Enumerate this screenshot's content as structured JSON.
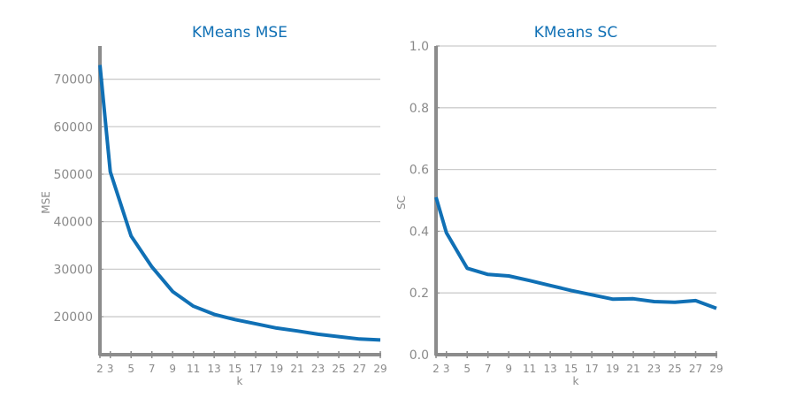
{
  "colors": {
    "line": "#1070b5",
    "title": "#1070b5",
    "grid": "#cccccc",
    "axis": "#8c8c8c",
    "text": "#8a8a8a"
  },
  "chart_data": [
    {
      "type": "line",
      "title": "KMeans MSE",
      "xlabel": "k",
      "ylabel": "MSE",
      "grid": "horizontal",
      "xlim": [
        2,
        29
      ],
      "ylim": [
        12000,
        77000
      ],
      "x_ticks": [
        2,
        3,
        5,
        7,
        9,
        11,
        13,
        15,
        17,
        19,
        21,
        23,
        25,
        27,
        29
      ],
      "y_ticks": [
        20000,
        30000,
        40000,
        50000,
        60000,
        70000
      ],
      "x_tick_labels": [
        "2",
        "3",
        "5",
        "7",
        "9",
        "11",
        "13",
        "15",
        "17",
        "19",
        "21",
        "23",
        "25",
        "27",
        "29"
      ],
      "y_tick_labels": [
        "20000",
        "30000",
        "40000",
        "50000",
        "60000",
        "70000"
      ],
      "series": [
        {
          "x": [
            2,
            3,
            5,
            7,
            9,
            11,
            13,
            15,
            17,
            19,
            21,
            23,
            25,
            27,
            29
          ],
          "y": [
            73000,
            50500,
            37000,
            30500,
            25300,
            22200,
            20500,
            19400,
            18500,
            17600,
            17000,
            16300,
            15800,
            15300,
            15100
          ]
        }
      ]
    },
    {
      "type": "line",
      "title": "KMeans SC",
      "xlabel": "k",
      "ylabel": "SC",
      "grid": "horizontal",
      "xlim": [
        2,
        29
      ],
      "ylim": [
        0.0,
        1.0
      ],
      "x_ticks": [
        2,
        3,
        5,
        7,
        9,
        11,
        13,
        15,
        17,
        19,
        21,
        23,
        25,
        27,
        29
      ],
      "y_ticks": [
        0.0,
        0.2,
        0.4,
        0.6,
        0.8,
        1.0
      ],
      "x_tick_labels": [
        "2",
        "3",
        "5",
        "7",
        "9",
        "11",
        "13",
        "15",
        "17",
        "19",
        "21",
        "23",
        "25",
        "27",
        "29"
      ],
      "y_tick_labels": [
        "0.0",
        "0.2",
        "0.4",
        "0.6",
        "0.8",
        "1.0"
      ],
      "series": [
        {
          "x": [
            2,
            3,
            5,
            7,
            9,
            11,
            13,
            15,
            17,
            19,
            21,
            23,
            25,
            27,
            29
          ],
          "y": [
            0.51,
            0.395,
            0.28,
            0.26,
            0.255,
            0.24,
            0.224,
            0.208,
            0.194,
            0.18,
            0.181,
            0.172,
            0.17,
            0.175,
            0.15
          ]
        }
      ]
    }
  ]
}
